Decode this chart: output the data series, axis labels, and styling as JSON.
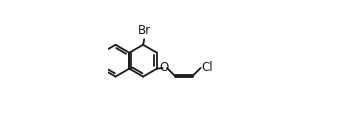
{
  "bg_color": "#ffffff",
  "bond_color": "#1a1a1a",
  "text_color": "#1a1a1a",
  "line_width": 1.3,
  "font_size": 8.5,
  "figsize": [
    3.54,
    1.2
  ],
  "dpi": 100,
  "Br_label": "Br",
  "O_label": "O",
  "Cl_label": "Cl",
  "xlim": [
    0.0,
    1.0
  ],
  "ylim": [
    0.0,
    0.85
  ]
}
